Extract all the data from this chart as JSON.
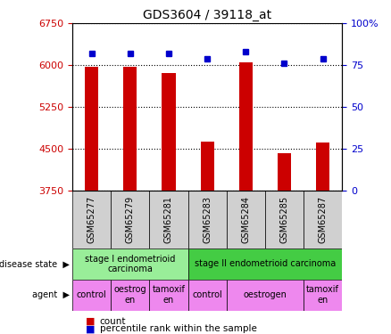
{
  "title": "GDS3604 / 39118_at",
  "samples": [
    "GSM65277",
    "GSM65279",
    "GSM65281",
    "GSM65283",
    "GSM65284",
    "GSM65285",
    "GSM65287"
  ],
  "counts": [
    5980,
    5970,
    5860,
    4630,
    6050,
    4430,
    4620
  ],
  "percentiles": [
    82,
    82,
    82,
    79,
    83,
    76,
    79
  ],
  "ylim_left": [
    3750,
    6750
  ],
  "ylim_right": [
    0,
    100
  ],
  "yticks_left": [
    3750,
    4500,
    5250,
    6000,
    6750
  ],
  "yticks_right": [
    0,
    25,
    50,
    75,
    100
  ],
  "bar_color": "#cc0000",
  "dot_color": "#0000cc",
  "sample_box_color": "#d0d0d0",
  "disease_state_groups": [
    {
      "label": "stage I endometrioid\ncarcinoma",
      "start": 0,
      "end": 3,
      "color": "#99ee99"
    },
    {
      "label": "stage II endometrioid carcinoma",
      "start": 3,
      "end": 7,
      "color": "#44cc44"
    }
  ],
  "agent_groups": [
    {
      "label": "control",
      "start": 0,
      "end": 1,
      "color": "#ee88ee"
    },
    {
      "label": "oestrog\nen",
      "start": 1,
      "end": 2,
      "color": "#ee88ee"
    },
    {
      "label": "tamoxif\nen",
      "start": 2,
      "end": 3,
      "color": "#ee88ee"
    },
    {
      "label": "control",
      "start": 3,
      "end": 4,
      "color": "#ee88ee"
    },
    {
      "label": "oestrogen",
      "start": 4,
      "end": 6,
      "color": "#ee88ee"
    },
    {
      "label": "tamoxif\nen",
      "start": 6,
      "end": 7,
      "color": "#ee88ee"
    }
  ],
  "left_labels": [
    "disease state",
    "agent"
  ],
  "background_color": "#ffffff",
  "plot_bg_color": "#ffffff"
}
